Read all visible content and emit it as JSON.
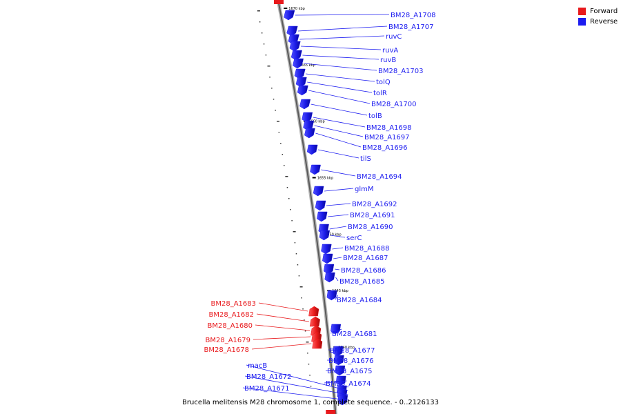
{
  "legend": {
    "forward_label": "Forward",
    "reverse_label": "Reverse",
    "forward_color": "#e8191c",
    "reverse_color": "#1c1cf0"
  },
  "caption": "Brucella melitensis M28 chromosome 1, complete sequence. - 0..2126133",
  "ticks": [
    {
      "kbp": 1670,
      "label": "1670 kbp"
    },
    {
      "kbp": 1665,
      "label": "1665 kbp"
    },
    {
      "kbp": 1660,
      "label": "1660 kbp"
    },
    {
      "kbp": 1655,
      "label": "1655 kbp"
    },
    {
      "kbp": 1650,
      "label": "1650 kbp"
    },
    {
      "kbp": 1645,
      "label": "1645 kbp"
    },
    {
      "kbp": 1640,
      "label": "1640 kbp"
    }
  ],
  "genes": [
    {
      "name": "BM28_A1708",
      "strand": "reverse"
    },
    {
      "name": "BM28_A1707",
      "strand": "reverse"
    },
    {
      "name": "ruvC",
      "strand": "reverse"
    },
    {
      "name": "ruvA",
      "strand": "reverse"
    },
    {
      "name": "ruvB",
      "strand": "reverse"
    },
    {
      "name": "BM28_A1703",
      "strand": "reverse"
    },
    {
      "name": "tolQ",
      "strand": "reverse"
    },
    {
      "name": "tolR",
      "strand": "reverse"
    },
    {
      "name": "BM28_A1700",
      "strand": "reverse"
    },
    {
      "name": "tolB",
      "strand": "reverse"
    },
    {
      "name": "BM28_A1698",
      "strand": "reverse"
    },
    {
      "name": "BM28_A1697",
      "strand": "reverse"
    },
    {
      "name": "BM28_A1696",
      "strand": "reverse"
    },
    {
      "name": "tilS",
      "strand": "reverse"
    },
    {
      "name": "BM28_A1694",
      "strand": "reverse"
    },
    {
      "name": "glmM",
      "strand": "reverse"
    },
    {
      "name": "BM28_A1692",
      "strand": "reverse"
    },
    {
      "name": "BM28_A1691",
      "strand": "reverse"
    },
    {
      "name": "BM28_A1690",
      "strand": "reverse"
    },
    {
      "name": "serC",
      "strand": "reverse"
    },
    {
      "name": "BM28_A1688",
      "strand": "reverse"
    },
    {
      "name": "BM28_A1687",
      "strand": "reverse"
    },
    {
      "name": "BM28_A1686",
      "strand": "reverse"
    },
    {
      "name": "BM28_A1685",
      "strand": "reverse"
    },
    {
      "name": "BM28_A1684",
      "strand": "reverse"
    },
    {
      "name": "BM28_A1683",
      "strand": "forward"
    },
    {
      "name": "BM28_A1682",
      "strand": "forward"
    },
    {
      "name": "BM28_A1680",
      "strand": "forward"
    },
    {
      "name": "BM28_A1681",
      "strand": "reverse"
    },
    {
      "name": "BM28_A1679",
      "strand": "forward"
    },
    {
      "name": "BM28_A1678",
      "strand": "forward"
    },
    {
      "name": "BM28_A1677",
      "strand": "reverse"
    },
    {
      "name": "BM28_A1676",
      "strand": "reverse"
    },
    {
      "name": "BM28_A1675",
      "strand": "reverse"
    },
    {
      "name": "BM28_A1674",
      "strand": "reverse"
    },
    {
      "name": "macB",
      "strand": "reverse"
    },
    {
      "name": "BM28_A1672",
      "strand": "reverse"
    },
    {
      "name": "BM28_A1671",
      "strand": "reverse"
    }
  ]
}
